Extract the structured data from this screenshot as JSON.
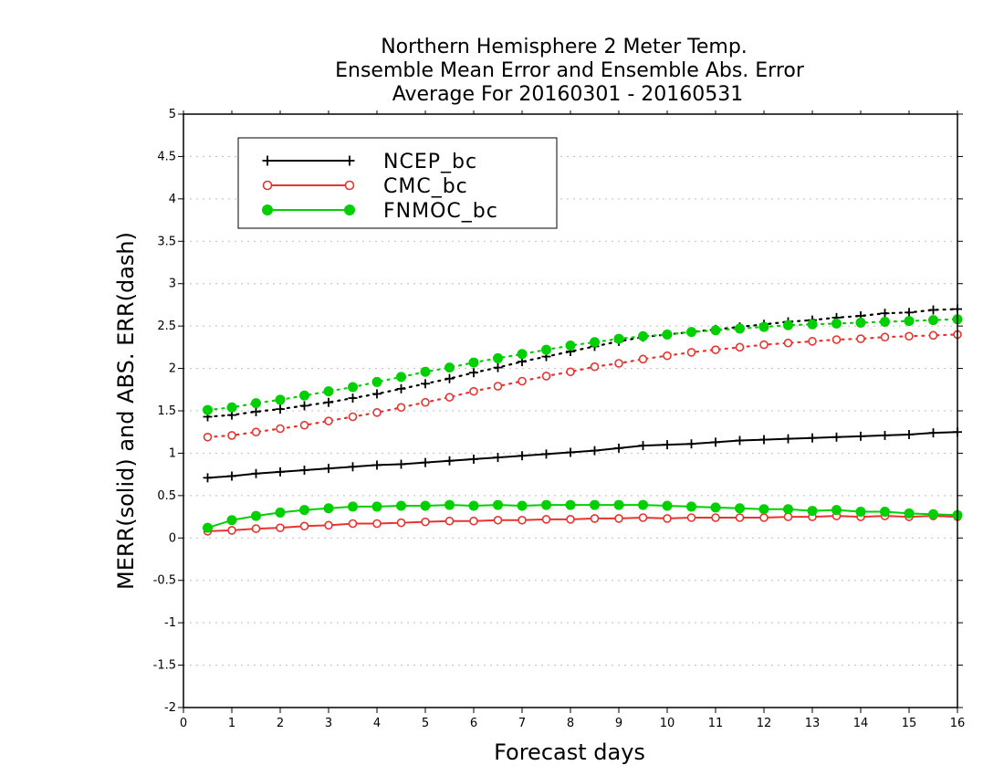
{
  "chart_data": {
    "type": "line",
    "title_lines": [
      "Northern Hemisphere 2 Meter Temp.",
      "Ensemble Mean Error and Ensemble Abs. Error",
      "Average For 20160301 - 20160531"
    ],
    "xlabel": "Forecast days",
    "ylabel": "MERR(solid) and ABS. ERR(dash)",
    "xlim": [
      0,
      16
    ],
    "ylim": [
      -2,
      5
    ],
    "x_ticks": [
      "0",
      "1",
      "2",
      "3",
      "4",
      "5",
      "6",
      "7",
      "8",
      "9",
      "10",
      "11",
      "12",
      "13",
      "14",
      "15",
      "16"
    ],
    "y_ticks": [
      "-2",
      "-1.5",
      "-1",
      "-0.5",
      "0",
      "0.5",
      "1",
      "1.5",
      "2",
      "2.5",
      "3",
      "3.5",
      "4",
      "4.5",
      "5"
    ],
    "grid": true,
    "legend_position": "top-left",
    "x": [
      0.5,
      1,
      1.5,
      2,
      2.5,
      3,
      3.5,
      4,
      4.5,
      5,
      5.5,
      6,
      6.5,
      7,
      7.5,
      8,
      8.5,
      9,
      9.5,
      10,
      10.5,
      11,
      11.5,
      12,
      12.5,
      13,
      13.5,
      14,
      14.5,
      15,
      15.5,
      16
    ],
    "series": [
      {
        "name": "NCEP_bc",
        "color": "#000000",
        "marker": "plus",
        "merr": [
          0.71,
          0.73,
          0.76,
          0.78,
          0.8,
          0.82,
          0.84,
          0.86,
          0.87,
          0.89,
          0.91,
          0.93,
          0.95,
          0.97,
          0.99,
          1.01,
          1.03,
          1.06,
          1.09,
          1.1,
          1.11,
          1.13,
          1.15,
          1.16,
          1.17,
          1.18,
          1.19,
          1.2,
          1.21,
          1.22,
          1.24,
          1.25
        ],
        "abs_err": [
          1.43,
          1.45,
          1.49,
          1.52,
          1.56,
          1.6,
          1.65,
          1.7,
          1.76,
          1.82,
          1.88,
          1.95,
          2.01,
          2.08,
          2.14,
          2.2,
          2.26,
          2.32,
          2.37,
          2.4,
          2.43,
          2.46,
          2.49,
          2.52,
          2.55,
          2.57,
          2.6,
          2.62,
          2.65,
          2.66,
          2.69,
          2.7
        ]
      },
      {
        "name": "CMC_bc",
        "color": "#e8332e",
        "marker": "open-circle",
        "merr": [
          0.08,
          0.09,
          0.11,
          0.12,
          0.14,
          0.15,
          0.17,
          0.17,
          0.18,
          0.19,
          0.2,
          0.2,
          0.21,
          0.21,
          0.22,
          0.22,
          0.23,
          0.23,
          0.24,
          0.23,
          0.24,
          0.24,
          0.24,
          0.24,
          0.25,
          0.25,
          0.26,
          0.25,
          0.26,
          0.25,
          0.26,
          0.25
        ],
        "abs_err": [
          1.19,
          1.21,
          1.25,
          1.29,
          1.33,
          1.38,
          1.43,
          1.48,
          1.54,
          1.6,
          1.66,
          1.73,
          1.79,
          1.85,
          1.91,
          1.96,
          2.02,
          2.06,
          2.11,
          2.15,
          2.19,
          2.22,
          2.25,
          2.28,
          2.3,
          2.32,
          2.34,
          2.35,
          2.37,
          2.38,
          2.39,
          2.4
        ]
      },
      {
        "name": "FNMOC_bc",
        "color": "#00d000",
        "marker": "filled-circle",
        "merr": [
          0.12,
          0.21,
          0.26,
          0.3,
          0.33,
          0.35,
          0.37,
          0.37,
          0.38,
          0.38,
          0.39,
          0.38,
          0.39,
          0.38,
          0.39,
          0.39,
          0.39,
          0.39,
          0.39,
          0.38,
          0.37,
          0.36,
          0.35,
          0.34,
          0.34,
          0.32,
          0.33,
          0.31,
          0.31,
          0.29,
          0.28,
          0.27
        ],
        "abs_err": [
          1.51,
          1.54,
          1.59,
          1.63,
          1.68,
          1.73,
          1.78,
          1.84,
          1.9,
          1.96,
          2.01,
          2.07,
          2.12,
          2.17,
          2.22,
          2.27,
          2.31,
          2.35,
          2.38,
          2.4,
          2.43,
          2.45,
          2.47,
          2.49,
          2.51,
          2.52,
          2.53,
          2.54,
          2.55,
          2.56,
          2.57,
          2.58
        ]
      }
    ]
  }
}
